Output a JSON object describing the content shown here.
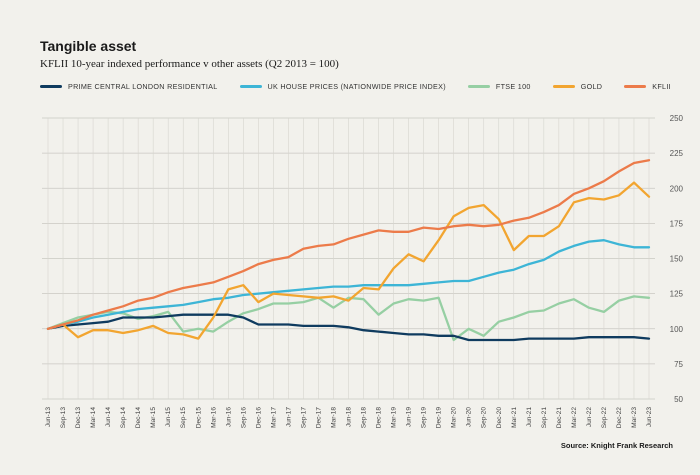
{
  "title": "Tangible asset",
  "subtitle": "KFLII 10-year indexed performance v other assets (Q2 2013 = 100)",
  "source": "Source: Knight Frank Research",
  "chart_data": {
    "type": "line",
    "x": [
      "Jun-13",
      "Sep-13",
      "Dec-13",
      "Mar-14",
      "Jun-14",
      "Sep-14",
      "Dec-14",
      "Mar-15",
      "Jun-15",
      "Sep-15",
      "Dec-15",
      "Mar-16",
      "Jun-16",
      "Sep-16",
      "Dec-16",
      "Mar-17",
      "Jun-17",
      "Sep-17",
      "Dec-17",
      "Mar-18",
      "Jun-18",
      "Sep-18",
      "Dec-18",
      "Mar-19",
      "Jun-19",
      "Sep-19",
      "Dec-19",
      "Mar-20",
      "Jun-20",
      "Sep-20",
      "Dec-20",
      "Mar-21",
      "Jun-21",
      "Sep-21",
      "Dec-21",
      "Mar-22",
      "Jun-22",
      "Sep-22",
      "Dec-22",
      "Mar-23",
      "Jun-23"
    ],
    "ylim": [
      50,
      250
    ],
    "yticks": [
      50,
      75,
      100,
      125,
      150,
      175,
      200,
      225,
      250
    ],
    "grid": true,
    "legend_position": "top",
    "series": [
      {
        "name": "PRIME CENTRAL LONDON RESIDENTIAL",
        "color": "#0f3b5f",
        "values": [
          100,
          102,
          103,
          104,
          105,
          108,
          108,
          108,
          109,
          110,
          110,
          110,
          110,
          108,
          103,
          103,
          103,
          102,
          102,
          102,
          101,
          99,
          98,
          97,
          96,
          96,
          95,
          95,
          92,
          92,
          92,
          92,
          93,
          93,
          93,
          93,
          94,
          94,
          94,
          94,
          93
        ]
      },
      {
        "name": "UK HOUSE PRICES (NATIONWIDE PRICE INDEX)",
        "color": "#3db5d6",
        "values": [
          100,
          103,
          105,
          108,
          110,
          112,
          114,
          115,
          116,
          117,
          119,
          121,
          122,
          124,
          125,
          126,
          127,
          128,
          129,
          130,
          130,
          131,
          131,
          131,
          131,
          132,
          133,
          134,
          134,
          137,
          140,
          142,
          146,
          149,
          155,
          159,
          162,
          163,
          160,
          158,
          158
        ]
      },
      {
        "name": "FTSE 100",
        "color": "#96cfa3",
        "values": [
          100,
          104,
          108,
          110,
          112,
          111,
          107,
          109,
          112,
          98,
          100,
          98,
          105,
          111,
          114,
          118,
          118,
          119,
          122,
          115,
          122,
          121,
          110,
          118,
          121,
          120,
          122,
          92,
          100,
          95,
          105,
          108,
          112,
          113,
          118,
          121,
          115,
          112,
          120,
          123,
          122
        ]
      },
      {
        "name": "GOLD",
        "color": "#f2a530",
        "values": [
          100,
          103,
          94,
          99,
          99,
          97,
          99,
          102,
          97,
          96,
          93,
          108,
          128,
          131,
          119,
          125,
          124,
          123,
          122,
          123,
          120,
          129,
          128,
          143,
          153,
          148,
          163,
          180,
          186,
          188,
          178,
          156,
          166,
          166,
          173,
          190,
          193,
          192,
          195,
          204,
          194
        ]
      },
      {
        "name": "KFLII",
        "color": "#ec7b4a",
        "values": [
          100,
          103,
          106,
          110,
          113,
          116,
          120,
          122,
          126,
          129,
          131,
          133,
          137,
          141,
          146,
          149,
          151,
          157,
          159,
          160,
          164,
          167,
          170,
          169,
          169,
          172,
          171,
          173,
          174,
          173,
          174,
          177,
          179,
          183,
          188,
          196,
          200,
          205,
          212,
          218,
          220
        ]
      }
    ]
  }
}
